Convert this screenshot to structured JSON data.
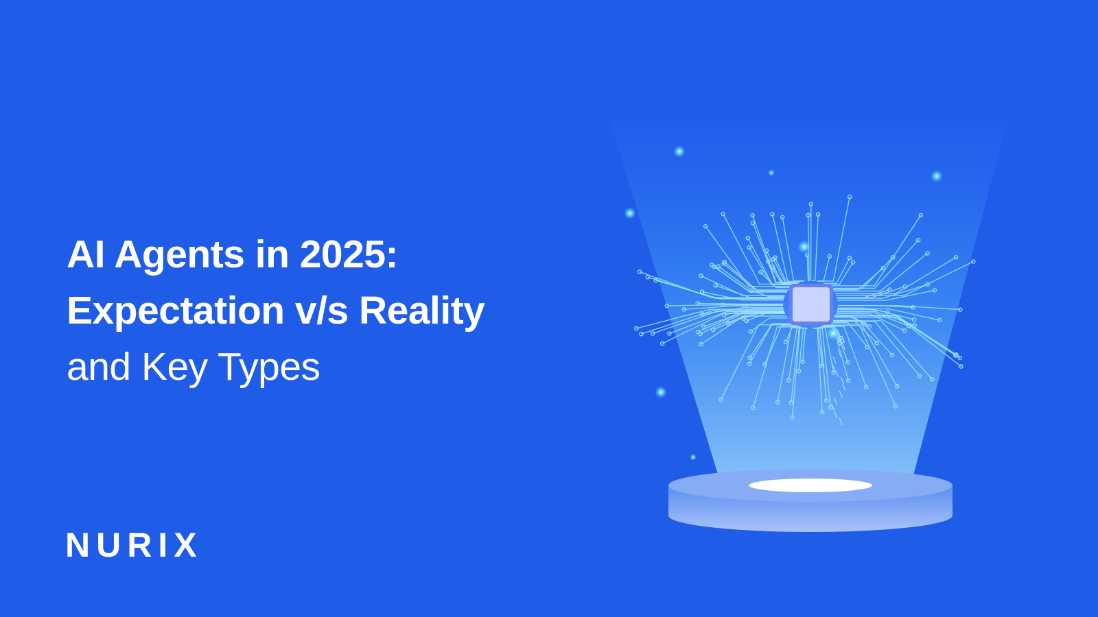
{
  "headline": {
    "line1": "AI Agents in 2025:",
    "line2": "Expectation v/s Reality",
    "line3": "and Key Types"
  },
  "brand": {
    "logo_text": "NURIX"
  },
  "colors": {
    "background": "#1f5ce8",
    "circuit": "#9fe0ff",
    "chip": "#c9d4ff",
    "text": "#ffffff"
  },
  "illustration": {
    "icons": [
      "spotlight-beam",
      "brain-circuit-icon",
      "chip-icon",
      "pedestal"
    ]
  }
}
